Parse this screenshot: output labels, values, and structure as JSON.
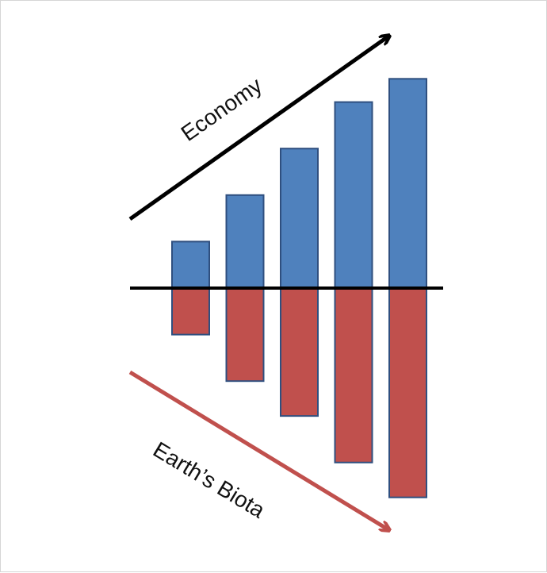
{
  "chart_data": {
    "type": "bar",
    "categories": [
      "",
      "",
      "",
      "",
      ""
    ],
    "series": [
      {
        "values": [
          2,
          4,
          6,
          8,
          9
        ],
        "color": "#4F81BD"
      },
      {
        "values": [
          -2,
          -4,
          -5.5,
          -7.5,
          -9
        ],
        "color": "#C0504D"
      }
    ],
    "ylim": [
      -9,
      9
    ],
    "grid": false,
    "legend": "none",
    "annotations": [
      {
        "text": "Economy",
        "direction": "up",
        "color": "#000000"
      },
      {
        "text": "Earth’s Biota",
        "direction": "down",
        "color": "#C0504D"
      }
    ]
  },
  "colors": {
    "economy": "#4F81BD",
    "biota": "#C0504D",
    "bar_stroke": "#2F4F7F",
    "axis": "#000000"
  }
}
